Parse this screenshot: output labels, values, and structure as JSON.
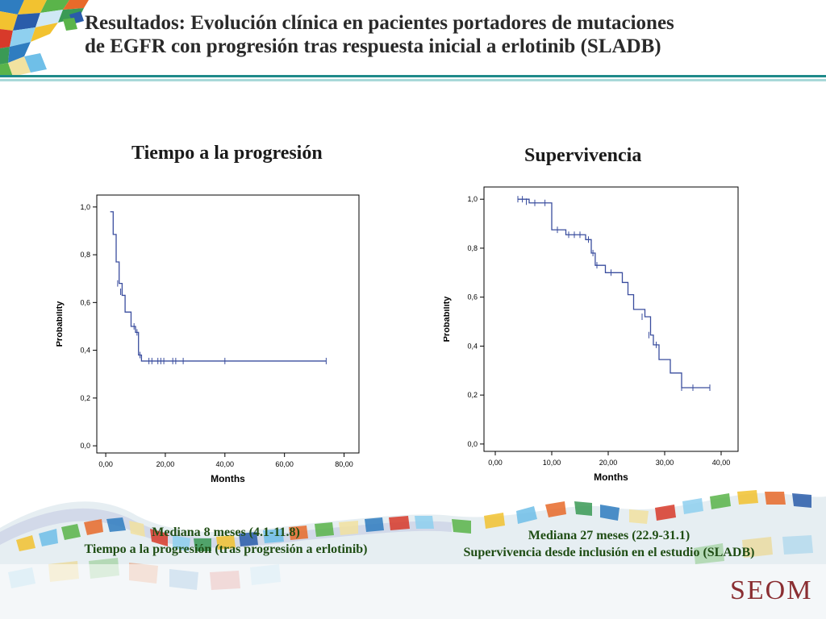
{
  "slide": {
    "title_line1": "Resultados: Evolución clínica en pacientes portadores de mutaciones",
    "title_line2": "de EGFR con progresión tras respuesta inicial a erlotinib (SLADB)",
    "logo_text": "SEOM",
    "colors": {
      "accent_teal": "#1e8a8a",
      "curve_blue": "#3a4d9e",
      "caption_green": "#1f4d14",
      "logo_red": "#8a2e32"
    }
  },
  "left": {
    "heading": "Tiempo a la progresión",
    "caption_line1": "Mediana  8 meses (4.1-11.8)",
    "caption_line2": "Tiempo a la progresión (tras progresión a erlotinib)"
  },
  "right": {
    "heading": "Supervivencia",
    "caption_line1": "Mediana 27  meses (22.9-31.1)",
    "caption_line2": "Supervivencia desde inclusión en el estudio (SLADB)"
  },
  "chart_data": [
    {
      "type": "line",
      "subtype": "kaplan-meier-step",
      "title": "Tiempo a la progresión",
      "xlabel": "Months",
      "ylabel": "Probability",
      "xlim": [
        -3,
        85
      ],
      "ylim": [
        -0.03,
        1.05
      ],
      "xticks": [
        0,
        20,
        40,
        60,
        80
      ],
      "xtick_labels": [
        "0,00",
        "20,00",
        "40,00",
        "60,00",
        "80,00"
      ],
      "yticks": [
        0,
        0.2,
        0.4,
        0.6,
        0.8,
        1.0
      ],
      "ytick_labels": [
        "0,0",
        "0,2",
        "0,4",
        "0,6",
        "0,8",
        "1,0"
      ],
      "grid": false,
      "series": [
        {
          "steps": [
            [
              1.5,
              0.98
            ],
            [
              2.5,
              0.885
            ],
            [
              3.5,
              0.77
            ],
            [
              4.5,
              0.68
            ],
            [
              5.5,
              0.63
            ],
            [
              6.5,
              0.56
            ],
            [
              8.5,
              0.5
            ],
            [
              10,
              0.475
            ],
            [
              11,
              0.38
            ],
            [
              12,
              0.355
            ],
            [
              74,
              0.355
            ]
          ],
          "censored": [
            [
              4,
              0.68
            ],
            [
              5,
              0.645
            ],
            [
              9.5,
              0.5
            ],
            [
              10.5,
              0.475
            ],
            [
              11.5,
              0.38
            ],
            [
              14.5,
              0.355
            ],
            [
              15.5,
              0.355
            ],
            [
              17.5,
              0.355
            ],
            [
              18.5,
              0.355
            ],
            [
              19.5,
              0.355
            ],
            [
              22.5,
              0.355
            ],
            [
              23.5,
              0.355
            ],
            [
              26,
              0.355
            ],
            [
              40,
              0.355
            ],
            [
              74,
              0.355
            ]
          ]
        }
      ]
    },
    {
      "type": "line",
      "subtype": "kaplan-meier-step",
      "title": "Supervivencia",
      "xlabel": "Months",
      "ylabel": "Probability",
      "xlim": [
        -2,
        43
      ],
      "ylim": [
        -0.03,
        1.05
      ],
      "xticks": [
        0,
        10,
        20,
        30,
        40
      ],
      "xtick_labels": [
        "0,00",
        "10,00",
        "20,00",
        "30,00",
        "40,00"
      ],
      "yticks": [
        0,
        0.2,
        0.4,
        0.6,
        0.8,
        1.0
      ],
      "ytick_labels": [
        "0,0",
        "0,2",
        "0,4",
        "0,6",
        "0,8",
        "1,0"
      ],
      "grid": false,
      "series": [
        {
          "steps": [
            [
              4,
              1.0
            ],
            [
              6,
              0.985
            ],
            [
              10,
              0.875
            ],
            [
              12.5,
              0.855
            ],
            [
              16,
              0.835
            ],
            [
              17,
              0.78
            ],
            [
              17.7,
              0.73
            ],
            [
              19.5,
              0.7
            ],
            [
              22.5,
              0.66
            ],
            [
              23.5,
              0.61
            ],
            [
              24.5,
              0.55
            ],
            [
              26.5,
              0.52
            ],
            [
              27.5,
              0.445
            ],
            [
              28,
              0.405
            ],
            [
              29,
              0.345
            ],
            [
              31,
              0.29
            ],
            [
              33,
              0.23
            ],
            [
              38,
              0.23
            ]
          ],
          "censored": [
            [
              4,
              1.0
            ],
            [
              4.8,
              1.0
            ],
            [
              5.5,
              0.99
            ],
            [
              7,
              0.985
            ],
            [
              8.8,
              0.985
            ],
            [
              11,
              0.875
            ],
            [
              13,
              0.855
            ],
            [
              14,
              0.855
            ],
            [
              15,
              0.855
            ],
            [
              16.5,
              0.835
            ],
            [
              17.3,
              0.78
            ],
            [
              18,
              0.73
            ],
            [
              20.5,
              0.7
            ],
            [
              26,
              0.52
            ],
            [
              27.2,
              0.445
            ],
            [
              28.5,
              0.405
            ],
            [
              33,
              0.23
            ],
            [
              35,
              0.23
            ],
            [
              38,
              0.23
            ]
          ]
        }
      ]
    }
  ]
}
